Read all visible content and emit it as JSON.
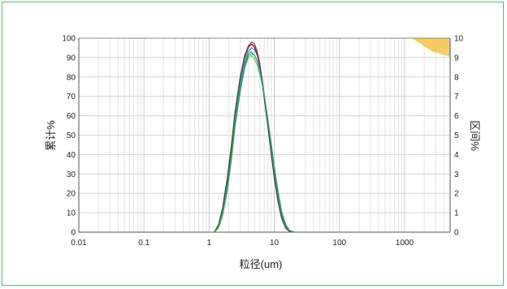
{
  "chart_data": {
    "type": "line",
    "xscale": "log",
    "xlim": [
      0.01,
      5000
    ],
    "ylim": [
      0,
      100
    ],
    "y2lim": [
      0,
      10
    ],
    "xticks": [
      "0.01",
      "0.1",
      "1",
      "10",
      "100",
      "1000"
    ],
    "yticks": [
      "0",
      "10",
      "20",
      "30",
      "40",
      "50",
      "60",
      "70",
      "80",
      "90",
      "100"
    ],
    "y2ticks": [
      "0",
      "1",
      "2",
      "3",
      "4",
      "5",
      "6",
      "7",
      "8",
      "9",
      "10"
    ],
    "xlabel": "粒径(um)",
    "ylabel": "累计%",
    "y2label": "区间%",
    "grid": true,
    "series_axis": "primary",
    "x_common": [
      1.2,
      1.4,
      1.6,
      1.9,
      2.2,
      2.5,
      3.0,
      3.5,
      4.0,
      4.5,
      5.0,
      5.5,
      6.0,
      6.6,
      7.2,
      8.0,
      9.0,
      10.0,
      11.5,
      13.0,
      15.0,
      17.0,
      20.0
    ],
    "series": [
      {
        "color": "#2b2b2b",
        "values": [
          0,
          4,
          12,
          28,
          45,
          62,
          80,
          90,
          95,
          97,
          96,
          92,
          85,
          76,
          66,
          54,
          40,
          28,
          15,
          7,
          2,
          0.5,
          0
        ]
      },
      {
        "color": "#c0392b",
        "values": [
          0,
          4,
          11,
          27,
          44,
          61,
          79,
          90,
          96,
          98,
          97,
          93,
          86,
          77,
          67,
          55,
          41,
          29,
          16,
          8,
          2.5,
          0.6,
          0
        ]
      },
      {
        "color": "#8e44ad",
        "values": [
          0,
          3,
          10,
          25,
          42,
          60,
          78,
          89,
          95,
          97,
          96,
          93,
          87,
          78,
          68,
          56,
          42,
          30,
          17,
          8,
          3,
          0.7,
          0
        ]
      },
      {
        "color": "#2e86c1",
        "values": [
          0,
          3,
          10,
          24,
          41,
          58,
          76,
          87,
          93,
          95,
          94,
          91,
          85,
          77,
          68,
          56,
          43,
          31,
          18,
          9,
          3,
          0.8,
          0
        ]
      },
      {
        "color": "#27ae60",
        "values": [
          0,
          3,
          9,
          23,
          39,
          56,
          74,
          86,
          92,
          93,
          91,
          88,
          83,
          76,
          68,
          57,
          45,
          33,
          20,
          10,
          4,
          1,
          0
        ]
      },
      {
        "color": "#82c341",
        "values": [
          0,
          2,
          8,
          21,
          37,
          54,
          72,
          84,
          90,
          91,
          89,
          86,
          81,
          75,
          68,
          58,
          46,
          34,
          21,
          11,
          4,
          1,
          0
        ]
      },
      {
        "color": "#6b4226",
        "values": [
          0,
          4,
          12,
          27,
          44,
          62,
          80,
          91,
          96,
          97,
          95,
          91,
          85,
          76,
          66,
          54,
          40,
          28,
          15,
          7,
          2,
          0.5,
          0
        ]
      },
      {
        "color": "#17a589",
        "values": [
          0,
          3,
          9,
          22,
          38,
          55,
          73,
          85,
          91,
          92,
          91,
          88,
          83,
          76,
          68,
          57,
          45,
          33,
          20,
          10,
          4,
          1,
          0
        ]
      }
    ],
    "corner_marker": {
      "color": "#f2c24a",
      "x_range": [
        1300,
        5000
      ],
      "y2_range": [
        9.3,
        10
      ]
    }
  }
}
